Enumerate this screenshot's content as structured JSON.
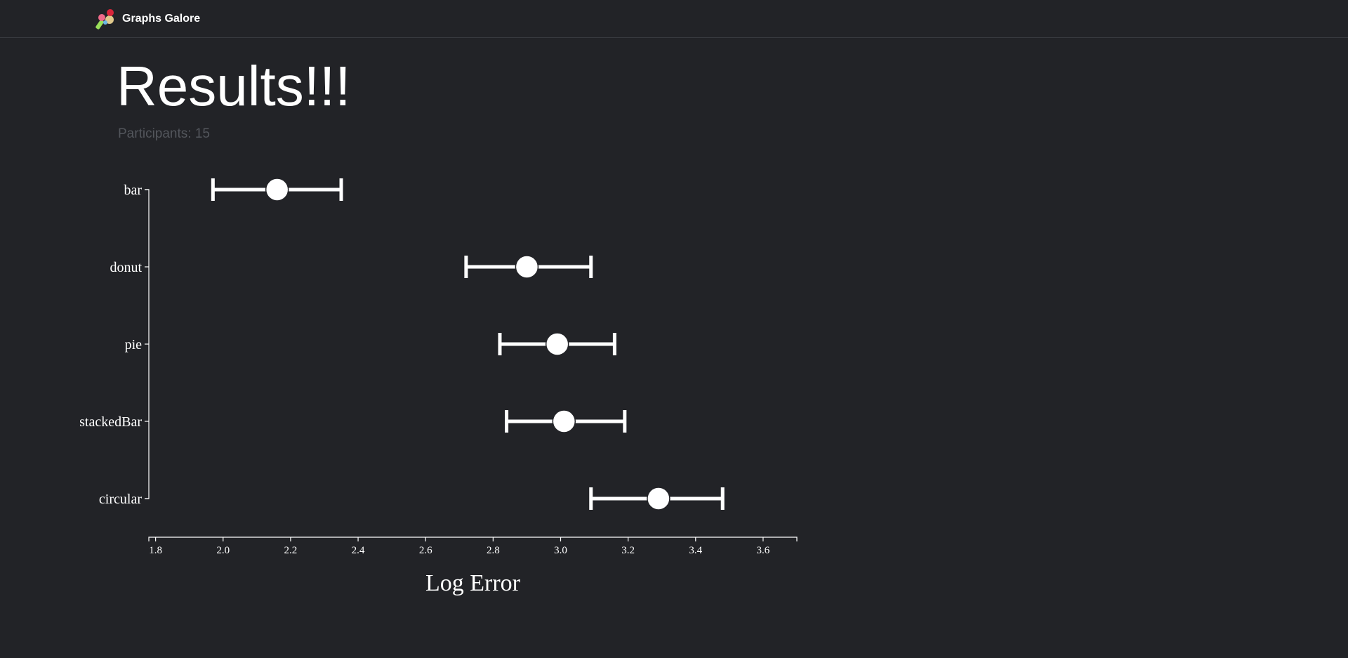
{
  "app": {
    "brand_name": "Graphs Galore",
    "logo_icon": "colorful-charts-logo-icon"
  },
  "page": {
    "title": "Results!!!",
    "participants_text": "Participants: 15"
  },
  "colors": {
    "background": "#222327",
    "foreground": "#ffffff",
    "muted_text": "#53565c"
  },
  "chart_data": {
    "type": "scatter",
    "style": "dot plot with confidence-interval error bars",
    "xlabel": "Log Error",
    "xlim": [
      1.78,
      3.7
    ],
    "xticks": [
      "1.8",
      "2.0",
      "2.2",
      "2.4",
      "2.6",
      "2.8",
      "3.0",
      "3.2",
      "3.4",
      "3.6"
    ],
    "categories": [
      "bar",
      "donut",
      "pie",
      "stackedBar",
      "circular"
    ],
    "points": [
      {
        "category": "bar",
        "mean": 2.16,
        "ci_low": 1.97,
        "ci_high": 2.35
      },
      {
        "category": "donut",
        "mean": 2.9,
        "ci_low": 2.72,
        "ci_high": 3.09
      },
      {
        "category": "pie",
        "mean": 2.99,
        "ci_low": 2.82,
        "ci_high": 3.16
      },
      {
        "category": "stackedBar",
        "mean": 3.01,
        "ci_low": 2.84,
        "ci_high": 3.19
      },
      {
        "category": "circular",
        "mean": 3.29,
        "ci_low": 3.09,
        "ci_high": 3.48
      }
    ],
    "grid": false,
    "legend": "none"
  }
}
